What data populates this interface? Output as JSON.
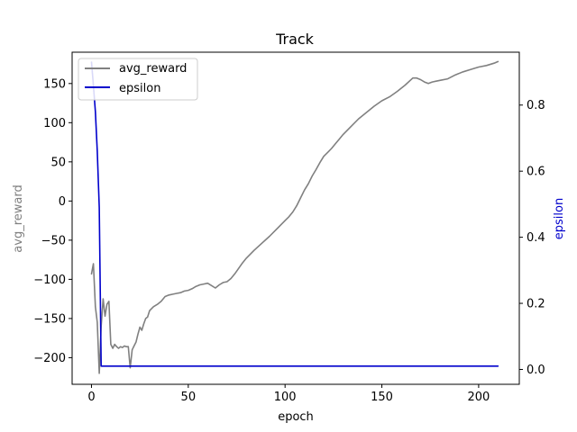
{
  "chart_data": {
    "type": "line",
    "title": "Track",
    "xlabel": "epoch",
    "ylabel_left": "avg_reward",
    "ylabel_right": "epsilon",
    "xlim": [
      -10,
      221
    ],
    "ylim_left": [
      -234,
      190
    ],
    "ylim_right": [
      -0.045,
      0.96
    ],
    "xticks": [
      0,
      50,
      100,
      150,
      200
    ],
    "yticks_left": [
      150,
      100,
      50,
      0,
      -50,
      -100,
      -150,
      -200
    ],
    "yticks_right": [
      0.0,
      0.2,
      0.4,
      0.6,
      0.8
    ],
    "ytick_labels_left": [
      "150",
      "100",
      "50",
      "0",
      "−50",
      "−100",
      "−150",
      "−200"
    ],
    "ytick_labels_right": [
      "0.0",
      "0.2",
      "0.4",
      "0.6",
      "0.8"
    ],
    "legend_position": "top-left",
    "grid": false,
    "series": [
      {
        "name": "avg_reward",
        "axis": "left",
        "color": "#808080",
        "x": [
          0,
          1,
          2,
          3,
          4,
          5,
          6,
          7,
          8,
          9,
          10,
          11,
          12,
          13,
          14,
          15,
          16,
          17,
          18,
          19,
          20,
          21,
          22,
          23,
          24,
          25,
          26,
          27,
          28,
          29,
          30,
          32,
          34,
          36,
          38,
          40,
          42,
          44,
          46,
          48,
          50,
          52,
          54,
          56,
          58,
          60,
          62,
          64,
          66,
          68,
          70,
          72,
          74,
          76,
          78,
          80,
          84,
          88,
          92,
          96,
          100,
          102,
          104,
          106,
          108,
          110,
          112,
          114,
          116,
          118,
          120,
          122,
          124,
          126,
          128,
          130,
          134,
          138,
          142,
          146,
          150,
          154,
          158,
          162,
          166,
          168,
          170,
          172,
          174,
          176,
          178,
          180,
          184,
          188,
          192,
          196,
          200,
          204,
          208,
          210
        ],
        "y": [
          -93,
          -80,
          -135,
          -155,
          -220,
          -160,
          -125,
          -147,
          -132,
          -128,
          -183,
          -188,
          -183,
          -186,
          -188,
          -186,
          -187,
          -185,
          -186,
          -186,
          -213,
          -190,
          -185,
          -180,
          -170,
          -161,
          -165,
          -157,
          -150,
          -148,
          -140,
          -135,
          -132,
          -128,
          -122,
          -120,
          -119,
          -118,
          -117,
          -115,
          -114,
          -112,
          -109,
          -107,
          -106,
          -105,
          -108,
          -111,
          -107,
          -104,
          -103,
          -99,
          -93,
          -86,
          -79,
          -73,
          -63,
          -54,
          -45,
          -35,
          -25,
          -20,
          -14,
          -6,
          4,
          14,
          22,
          32,
          40,
          49,
          57,
          62,
          67,
          73,
          79,
          85,
          95,
          105,
          113,
          121,
          128,
          133,
          140,
          148,
          157,
          157,
          155,
          152,
          150,
          152,
          153,
          154,
          156,
          161,
          165,
          168,
          171,
          173,
          176,
          178
        ]
      },
      {
        "name": "epsilon",
        "axis": "right",
        "color": "#0000cc",
        "x": [
          0,
          1,
          2,
          3,
          4,
          5,
          6,
          10,
          50,
          100,
          150,
          200,
          210
        ],
        "y": [
          0.93,
          0.86,
          0.78,
          0.66,
          0.49,
          0.01,
          0.01,
          0.01,
          0.01,
          0.01,
          0.01,
          0.01,
          0.01
        ]
      }
    ]
  }
}
